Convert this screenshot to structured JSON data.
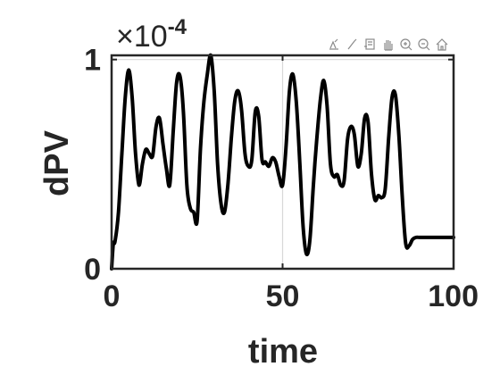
{
  "chart_data": {
    "type": "line",
    "title": "",
    "xlabel": "time",
    "ylabel": "dPV",
    "exponent_label": "×10",
    "exponent_power": "-4",
    "xlim": [
      0,
      100
    ],
    "ylim": [
      0,
      1.02
    ],
    "xticks": [
      0,
      50,
      100
    ],
    "xtick_labels": [
      "0",
      "50",
      "100"
    ],
    "yticks": [
      0,
      1
    ],
    "ytick_labels": [
      "0",
      "1"
    ],
    "grid": "x-only",
    "line_color": "#000000",
    "series": [
      {
        "x": [
          0,
          0.5,
          1,
          2,
          3,
          4,
          5,
          6,
          7,
          8,
          9,
          10,
          11,
          12,
          13,
          14,
          15,
          16,
          17,
          18,
          19,
          20,
          21,
          22,
          23,
          24,
          25,
          26,
          27,
          28,
          29,
          30,
          31,
          32,
          33,
          34,
          35,
          36,
          37,
          38,
          39,
          40,
          41,
          42,
          43,
          44,
          45,
          46,
          47,
          48,
          49,
          50,
          51,
          52,
          53,
          54,
          55,
          56,
          57,
          58,
          59,
          60,
          61,
          62,
          63,
          64,
          65,
          66,
          67,
          68,
          69,
          70,
          71,
          72,
          73,
          74,
          75,
          76,
          77,
          78,
          79,
          80,
          81,
          82,
          83,
          84,
          85,
          86,
          87,
          88,
          89,
          90,
          91,
          92,
          93,
          94,
          95,
          96,
          97,
          98,
          99,
          100
        ],
        "y": [
          0.0,
          0.12,
          0.13,
          0.27,
          0.55,
          0.82,
          0.95,
          0.82,
          0.55,
          0.4,
          0.5,
          0.57,
          0.55,
          0.54,
          0.68,
          0.72,
          0.6,
          0.48,
          0.4,
          0.65,
          0.89,
          0.92,
          0.75,
          0.4,
          0.29,
          0.27,
          0.23,
          0.58,
          0.8,
          0.93,
          1.02,
          0.85,
          0.5,
          0.31,
          0.27,
          0.4,
          0.62,
          0.8,
          0.85,
          0.76,
          0.55,
          0.49,
          0.52,
          0.75,
          0.73,
          0.52,
          0.51,
          0.49,
          0.53,
          0.51,
          0.44,
          0.4,
          0.58,
          0.85,
          0.93,
          0.8,
          0.52,
          0.2,
          0.07,
          0.14,
          0.4,
          0.62,
          0.8,
          0.9,
          0.78,
          0.5,
          0.44,
          0.45,
          0.4,
          0.42,
          0.62,
          0.68,
          0.64,
          0.49,
          0.55,
          0.72,
          0.7,
          0.45,
          0.33,
          0.35,
          0.34,
          0.38,
          0.62,
          0.82,
          0.83,
          0.64,
          0.34,
          0.12,
          0.11,
          0.14,
          0.15,
          0.15,
          0.15,
          0.15,
          0.15,
          0.15,
          0.15,
          0.15,
          0.15,
          0.15,
          0.15,
          0.15
        ]
      }
    ]
  },
  "toolbar": {
    "icons": [
      "export-icon",
      "brush-icon",
      "datatip-icon",
      "pan-icon",
      "zoom-in-icon",
      "zoom-out-icon",
      "home-icon"
    ]
  }
}
